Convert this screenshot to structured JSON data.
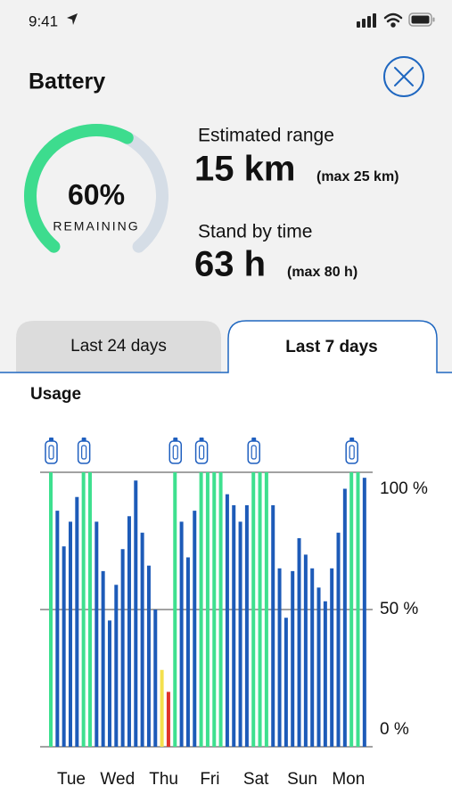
{
  "status_bar": {
    "time": "9:41"
  },
  "header": {
    "title": "Battery"
  },
  "gauge": {
    "value": 60,
    "label": "60%",
    "caption": "REMAINING"
  },
  "range": {
    "label": "Estimated range",
    "value": "15 km",
    "max": "(max 25 km)"
  },
  "standby": {
    "label": "Stand by time",
    "value": "63 h",
    "max": "(max 80 h)"
  },
  "tabs": [
    "Last 24 days",
    "Last 7 days"
  ],
  "active_tab": 1,
  "section_title": "Usage",
  "chart_data": {
    "type": "bar",
    "day_labels": [
      "Tue",
      "Wed",
      "Thu",
      "Fri",
      "Sat",
      "Sun",
      "Mon"
    ],
    "values": [
      100,
      86,
      73,
      82,
      91,
      100,
      100,
      82,
      64,
      46,
      59,
      72,
      84,
      97,
      78,
      66,
      50,
      28,
      20,
      100,
      82,
      69,
      86,
      100,
      100,
      100,
      100,
      92,
      88,
      82,
      88,
      100,
      100,
      100,
      88,
      65,
      47,
      64,
      76,
      70,
      65,
      58,
      53,
      65,
      78,
      94,
      100,
      100,
      98
    ],
    "colors": [
      "#3ee08f",
      "#1d5bb8",
      "#1d5bb8",
      "#1d5bb8",
      "#1d5bb8",
      "#3ee08f",
      "#3ee08f",
      "#1d5bb8",
      "#1d5bb8",
      "#1d5bb8",
      "#1d5bb8",
      "#1d5bb8",
      "#1d5bb8",
      "#1d5bb8",
      "#1d5bb8",
      "#1d5bb8",
      "#1d5bb8",
      "#f4e04d",
      "#e0352b",
      "#3ee08f",
      "#1d5bb8",
      "#1d5bb8",
      "#1d5bb8",
      "#3ee08f",
      "#3ee08f",
      "#3ee08f",
      "#3ee08f",
      "#1d5bb8",
      "#1d5bb8",
      "#1d5bb8",
      "#1d5bb8",
      "#3ee08f",
      "#3ee08f",
      "#3ee08f",
      "#1d5bb8",
      "#1d5bb8",
      "#1d5bb8",
      "#1d5bb8",
      "#1d5bb8",
      "#1d5bb8",
      "#1d5bb8",
      "#1d5bb8",
      "#1d5bb8",
      "#1d5bb8",
      "#1d5bb8",
      "#1d5bb8",
      "#3ee08f",
      "#3ee08f",
      "#1d5bb8"
    ],
    "ylim": [
      0,
      100
    ],
    "yticks": [
      {
        "value": 0,
        "label": "0 %"
      },
      {
        "value": 50,
        "label": "50 %"
      },
      {
        "value": 100,
        "label": "100 %"
      }
    ],
    "grid": true
  }
}
